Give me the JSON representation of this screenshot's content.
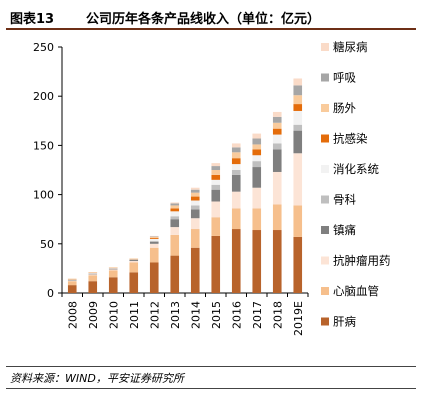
{
  "header": {
    "figure_label": "图表13",
    "title": "公司历年各条产品线收入（单位：亿元）"
  },
  "footer": {
    "source": "资料来源：WIND，平安证券研究所"
  },
  "chart_data": {
    "type": "bar",
    "stacked": true,
    "title": "公司历年各条产品线收入（单位：亿元）",
    "categories": [
      "2008",
      "2009",
      "2010",
      "2011",
      "2012",
      "2013",
      "2014",
      "2015",
      "2016",
      "2017",
      "2018",
      "2019E"
    ],
    "ylim": [
      0,
      250
    ],
    "yticks": [
      0,
      50,
      100,
      150,
      200,
      250
    ],
    "legend_position": "right",
    "series": [
      {
        "name": "肝病",
        "color": "#b8632b",
        "values": [
          8,
          12,
          16,
          21,
          31,
          38,
          46,
          58,
          65,
          64,
          64,
          57
        ]
      },
      {
        "name": "心脑血管",
        "color": "#f6bf8c",
        "values": [
          4,
          6,
          7,
          10,
          15,
          21,
          19,
          19,
          21,
          22,
          26,
          32
        ]
      },
      {
        "name": "抗肿瘤用药",
        "color": "#fce4d6",
        "values": [
          0.5,
          1,
          1,
          1.5,
          4,
          8,
          11,
          16,
          17,
          21,
          33,
          53
        ]
      },
      {
        "name": "镇痛",
        "color": "#7f7f7f",
        "values": [
          0.5,
          0.5,
          0.5,
          1,
          2,
          8,
          9,
          12,
          17,
          21,
          23,
          23
        ]
      },
      {
        "name": "骨科",
        "color": "#bfbfbf",
        "values": [
          0.5,
          0.5,
          0.5,
          0.5,
          1,
          3,
          4,
          5,
          5,
          6,
          6,
          6
        ]
      },
      {
        "name": "消化系统",
        "color": "#f2f2f2",
        "values": [
          0.5,
          0.5,
          0.5,
          0.5,
          2,
          5,
          5,
          5,
          6,
          6,
          9,
          14
        ]
      },
      {
        "name": "抗感染",
        "color": "#e46c0a",
        "values": [
          0.3,
          0.3,
          0.3,
          0.3,
          1,
          3,
          4,
          5,
          6,
          6,
          6,
          7
        ]
      },
      {
        "name": "肠外",
        "color": "#f9cb9c",
        "values": [
          0.2,
          0.2,
          0.2,
          0.2,
          1,
          3,
          4,
          5,
          6,
          5,
          6,
          9
        ]
      },
      {
        "name": "呼吸",
        "color": "#a6a6a6",
        "values": [
          0,
          0,
          0,
          0,
          0.5,
          2,
          3,
          4,
          5,
          6,
          6,
          10
        ]
      },
      {
        "name": "糖尿病",
        "color": "#fadbc8",
        "values": [
          0,
          0,
          0,
          0,
          0.5,
          1,
          2,
          3,
          4,
          5,
          5,
          7
        ]
      }
    ]
  }
}
